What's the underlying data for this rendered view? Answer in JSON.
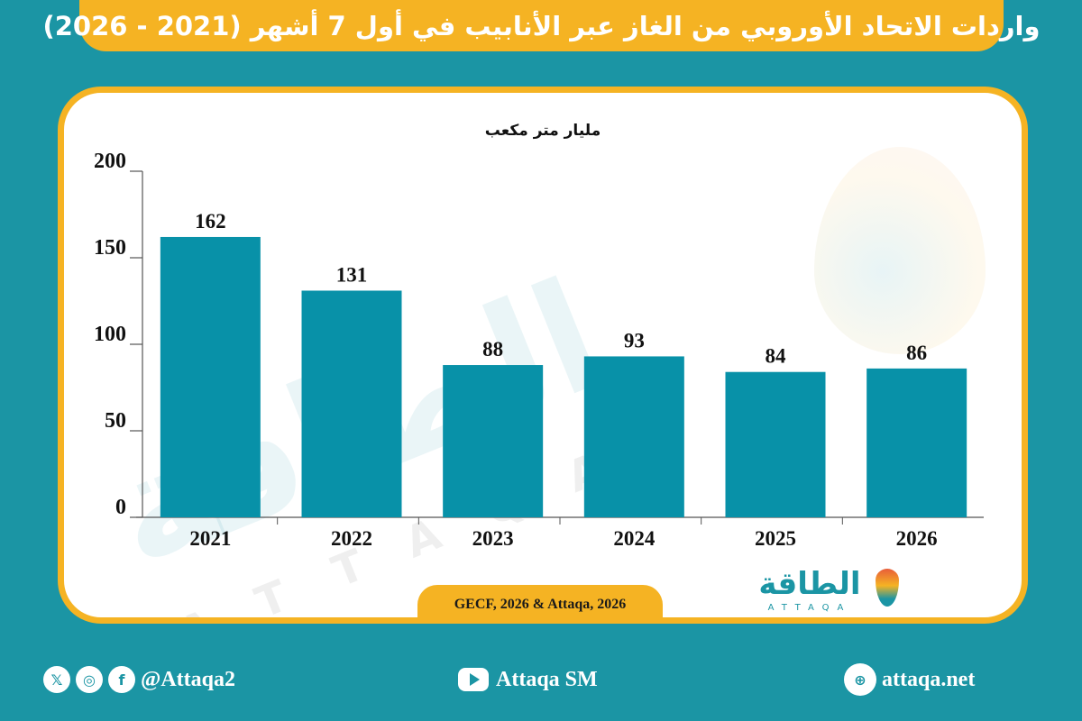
{
  "title": "واردات الاتحاد الأوروبي من الغاز عبر الأنابيب في أول 7 أشهر (2021 - 2026)",
  "chart_data": {
    "type": "bar",
    "title": "واردات الاتحاد الأوروبي من الغاز عبر الأنابيب في أول 7 أشهر (2021 - 2026)",
    "ylabel": "مليار متر مكعب",
    "categories": [
      "2021",
      "2022",
      "2023",
      "2024",
      "2025",
      "2026"
    ],
    "values": [
      162,
      131,
      88,
      93,
      84,
      86
    ],
    "ylim": [
      0,
      200
    ],
    "yticks": [
      0,
      50,
      100,
      150,
      200
    ],
    "bar_color": "#0891a8",
    "grid": false,
    "data_labels": true
  },
  "source": "GECF, 2026 & Attaqa, 2026",
  "logo": {
    "arabic": "الطاقة",
    "latin": "ATTAQA"
  },
  "watermark": {
    "arabic": "الطاقة",
    "latin": "ATTAQA"
  },
  "footer": {
    "social_handle": "@Attaqa2",
    "youtube": "Attaqa SM",
    "website": "attaqa.net",
    "icons": [
      "x-icon",
      "instagram-icon",
      "facebook-icon",
      "youtube-icon",
      "globe-icon"
    ]
  },
  "colors": {
    "background": "#1b95a4",
    "accent": "#f5b323",
    "bar": "#0891a8"
  }
}
